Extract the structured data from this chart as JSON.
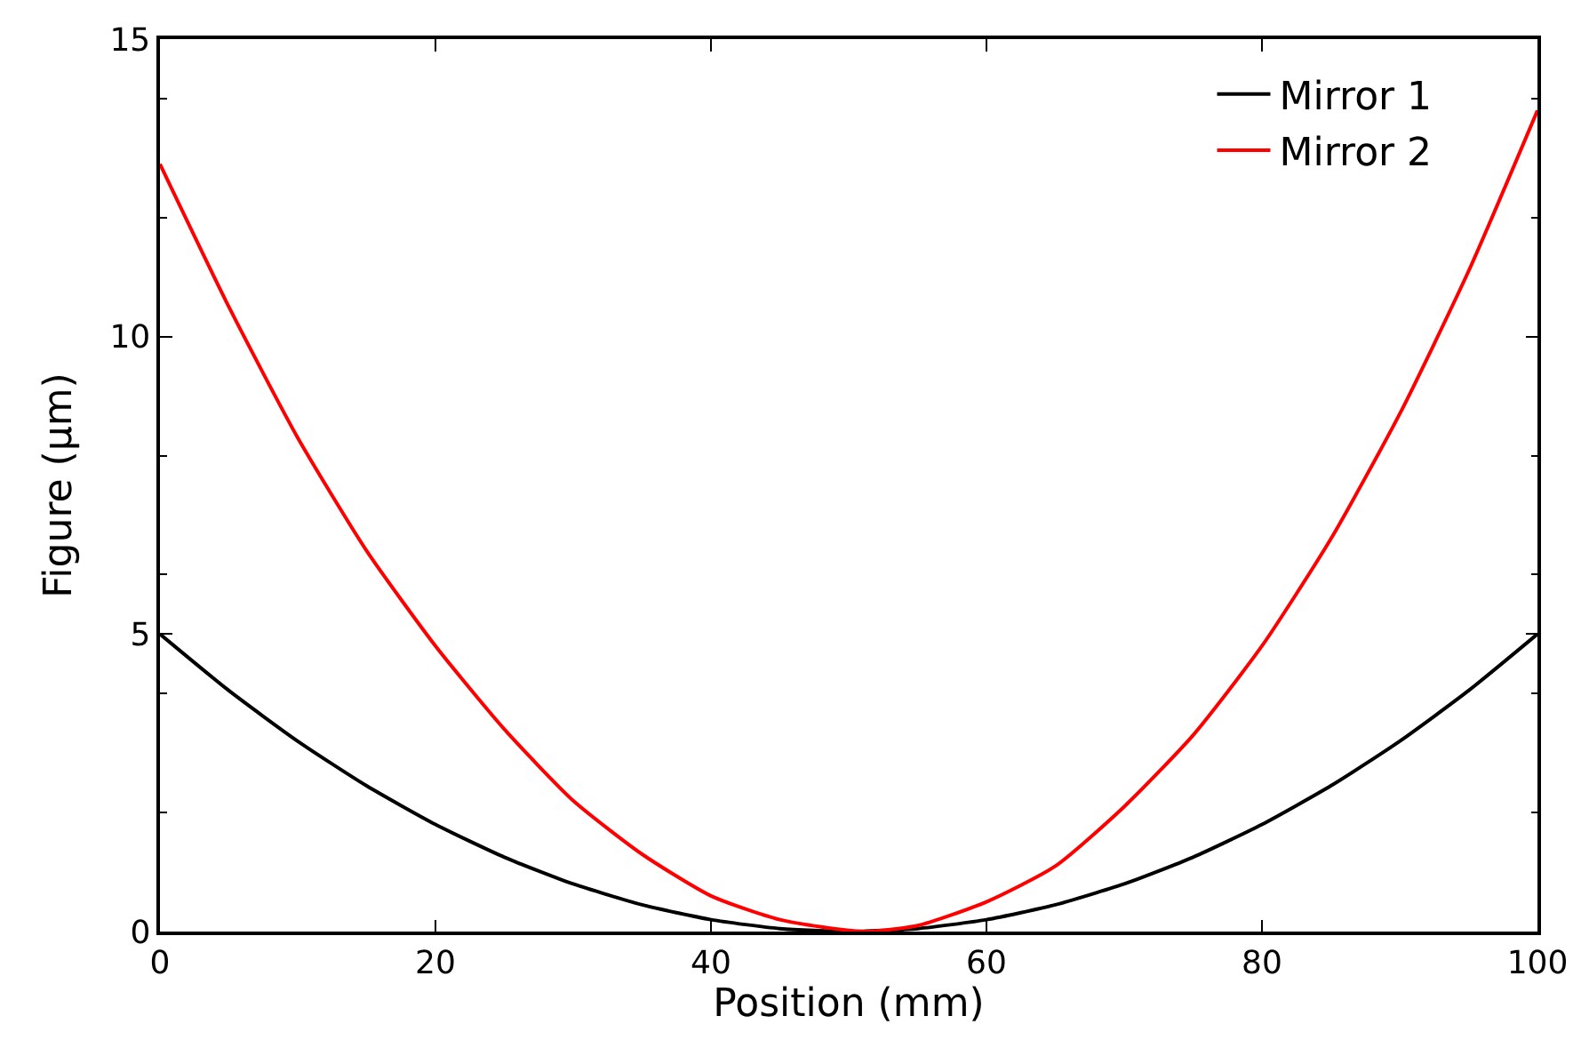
{
  "chart_data": {
    "type": "line",
    "xlabel": "Position (mm)",
    "ylabel": "Figure (µm)",
    "xlim": [
      0,
      100
    ],
    "xticks": [
      0,
      20,
      40,
      60,
      80,
      100
    ],
    "ylim": [
      0,
      15
    ],
    "yticks": [
      0,
      5,
      10,
      15
    ],
    "legend": "top right",
    "marker": "none",
    "line_style": "solid",
    "series": [
      {
        "name": "Mirror 1",
        "color": "#000000",
        "x": [
          0,
          5,
          10,
          15,
          20,
          25,
          30,
          35,
          40,
          45,
          50,
          55,
          60,
          65,
          70,
          75,
          80,
          85,
          90,
          95,
          100
        ],
        "values": [
          5,
          4.05,
          3.2,
          2.45,
          1.8,
          1.25,
          0.8,
          0.45,
          0.2,
          0.05,
          0,
          0.05,
          0.2,
          0.45,
          0.8,
          1.25,
          1.8,
          2.45,
          3.2,
          4.05,
          5
        ]
      },
      {
        "name": "Mirror 2",
        "color": "#ff0000",
        "x": [
          0,
          5,
          10,
          15,
          20,
          25,
          30,
          35,
          40,
          45,
          51,
          55,
          60,
          65,
          70,
          75,
          80,
          85,
          90,
          95,
          100
        ],
        "values": [
          12.9,
          10.5,
          8.3,
          6.4,
          4.8,
          3.4,
          2.2,
          1.3,
          0.6,
          0.2,
          0,
          0.1,
          0.5,
          1.1,
          2.1,
          3.3,
          4.8,
          6.6,
          8.7,
          11.1,
          13.8
        ]
      }
    ]
  }
}
